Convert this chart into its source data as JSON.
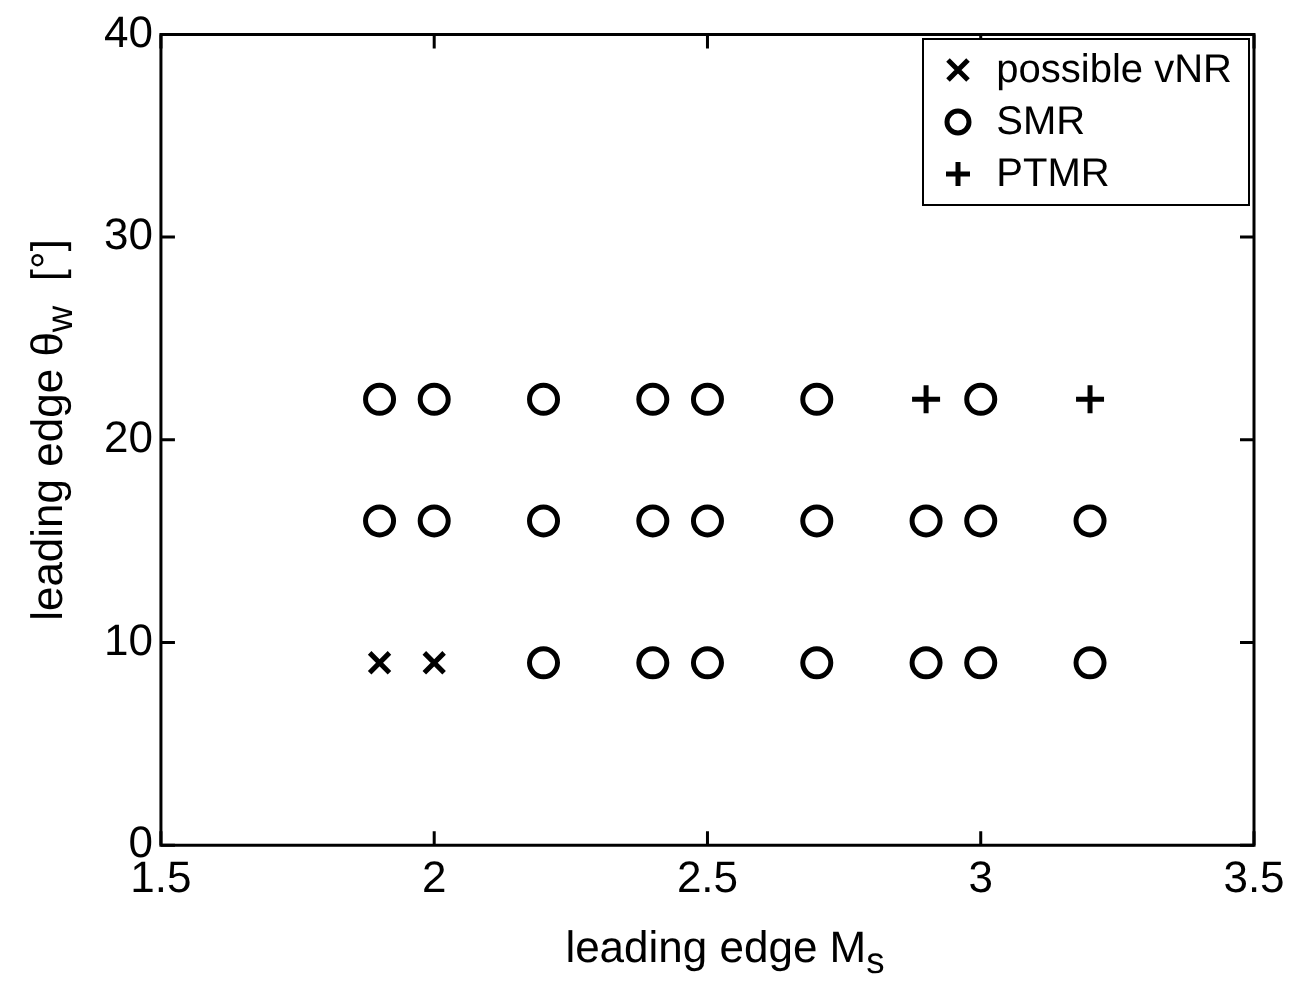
{
  "chart_data": {
    "type": "scatter",
    "xlabel": "leading edge M$_{s}$",
    "ylabel": "leading edge θ$_{w}$  [°]",
    "xlim": [
      1.5,
      3.5
    ],
    "xticks": [
      1.5,
      2,
      2.5,
      3,
      3.5
    ],
    "ylim": [
      0,
      40
    ],
    "yticks": [
      0,
      10,
      20,
      30,
      40
    ],
    "grid": false,
    "legend": "top right",
    "series": [
      {
        "name": "possible vNR",
        "color": "#000000",
        "marker": "cross",
        "x": [
          1.9,
          2.0
        ],
        "values": [
          9,
          9
        ]
      },
      {
        "name": "SMR",
        "color": "#000000",
        "marker": "circle",
        "x": [
          2.2,
          2.4,
          2.5,
          2.7,
          2.9,
          3.0,
          3.2,
          1.9,
          2.0,
          2.2,
          2.4,
          2.5,
          2.7,
          2.9,
          3.0,
          3.2,
          1.9,
          2.0,
          2.2,
          2.4,
          2.5,
          2.7,
          3.0
        ],
        "values": [
          9,
          9,
          9,
          9,
          9,
          9,
          9,
          16,
          16,
          16,
          16,
          16,
          16,
          16,
          16,
          16,
          22,
          22,
          22,
          22,
          22,
          22,
          22
        ]
      },
      {
        "name": "PTMR",
        "color": "#000000",
        "marker": "plus",
        "x": [
          2.9,
          3.2
        ],
        "values": [
          22,
          22
        ]
      }
    ]
  }
}
